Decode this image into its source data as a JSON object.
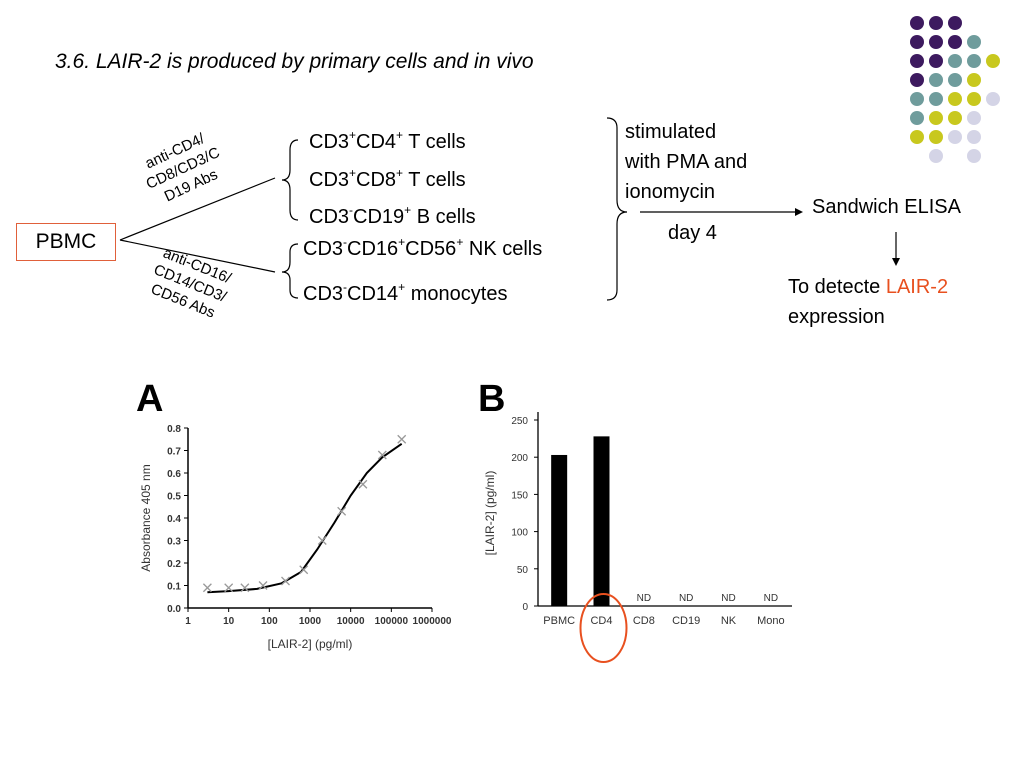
{
  "title": "3.6. LAIR-2 is produced by primary cells and in vivo",
  "pbmc": "PBMC",
  "antibody_top": [
    "anti-CD4/",
    "CD8/CD3/C",
    "D19 Abs"
  ],
  "antibody_bottom": [
    "anti-CD16/",
    "CD14/CD3/",
    "CD56 Abs"
  ],
  "cell_types": [
    {
      "parts": [
        [
          "CD3",
          "+"
        ],
        [
          "CD4",
          "+"
        ],
        [
          " T cells",
          ""
        ]
      ]
    },
    {
      "parts": [
        [
          "CD3",
          "+"
        ],
        [
          "CD8",
          "+"
        ],
        [
          " T cells",
          ""
        ]
      ]
    },
    {
      "parts": [
        [
          "CD3",
          "-"
        ],
        [
          "CD19",
          "+"
        ],
        [
          " B cells",
          ""
        ]
      ]
    },
    {
      "parts": [
        [
          "CD3",
          "-"
        ],
        [
          "CD16",
          "+"
        ],
        [
          "CD56",
          "+"
        ],
        [
          " NK cells",
          ""
        ]
      ]
    },
    {
      "parts": [
        [
          "CD3",
          "-"
        ],
        [
          "CD14",
          "+"
        ],
        [
          " monocytes",
          ""
        ]
      ]
    }
  ],
  "stimulation": [
    "stimulated",
    "with PMA and",
    "ionomycin"
  ],
  "day": "day 4",
  "assay": "Sandwich ELISA",
  "detect_prefix": "To detecte ",
  "detect_target": "LAIR-2",
  "detect_suffix": "expression",
  "colors": {
    "purple": "#3d1a5f",
    "teal": "#6f9c9c",
    "yellow": "#c8c81e",
    "lavender": "#d4d4e6",
    "accent_red": "#e8501f"
  },
  "chart_data": [
    {
      "panel": "A",
      "type": "scatter",
      "xlabel": "[LAIR-2] (pg/ml)",
      "ylabel": "Absorbance 405 nm",
      "xscale": "log",
      "xlim": [
        1,
        1000000
      ],
      "ylim": [
        0,
        0.8
      ],
      "xticks": [
        "1",
        "10",
        "100",
        "1000",
        "10000",
        "100000",
        "1000000"
      ],
      "yticks": [
        "0.0",
        "0.1",
        "0.2",
        "0.3",
        "0.4",
        "0.5",
        "0.6",
        "0.7",
        "0.8"
      ],
      "points": [
        {
          "x": 3,
          "y": 0.09
        },
        {
          "x": 10,
          "y": 0.09
        },
        {
          "x": 25,
          "y": 0.09
        },
        {
          "x": 70,
          "y": 0.1
        },
        {
          "x": 250,
          "y": 0.12
        },
        {
          "x": 700,
          "y": 0.17
        },
        {
          "x": 2000,
          "y": 0.3
        },
        {
          "x": 6000,
          "y": 0.43
        },
        {
          "x": 20000,
          "y": 0.55
        },
        {
          "x": 60000,
          "y": 0.68
        },
        {
          "x": 180000,
          "y": 0.75
        }
      ],
      "curve": [
        {
          "x": 3,
          "y": 0.07
        },
        {
          "x": 10,
          "y": 0.075
        },
        {
          "x": 50,
          "y": 0.085
        },
        {
          "x": 200,
          "y": 0.11
        },
        {
          "x": 600,
          "y": 0.16
        },
        {
          "x": 1500,
          "y": 0.26
        },
        {
          "x": 4000,
          "y": 0.38
        },
        {
          "x": 10000,
          "y": 0.5
        },
        {
          "x": 25000,
          "y": 0.6
        },
        {
          "x": 60000,
          "y": 0.67
        },
        {
          "x": 180000,
          "y": 0.73
        }
      ]
    },
    {
      "panel": "B",
      "type": "bar",
      "ylabel": "[LAIR-2] (pg/ml)",
      "ylim": [
        0,
        250
      ],
      "yticks": [
        "0",
        "50",
        "100",
        "150",
        "200",
        "250"
      ],
      "categories": [
        "PBMC",
        "CD4",
        "CD8",
        "CD19",
        "NK",
        "Mono"
      ],
      "values": [
        203,
        228,
        0,
        0,
        0,
        0
      ],
      "annotations": [
        "",
        "",
        "ND",
        "ND",
        "ND",
        "ND"
      ],
      "highlighted": "CD4"
    }
  ]
}
